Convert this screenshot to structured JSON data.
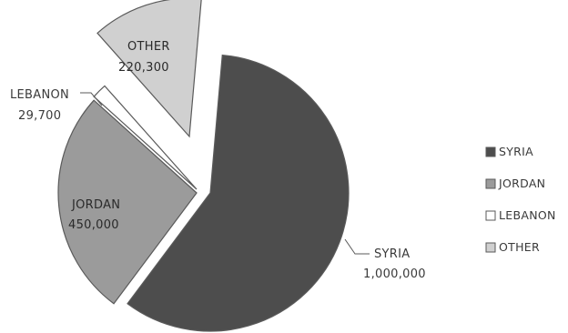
{
  "chart_data": {
    "type": "pie",
    "exploded": true,
    "categories": [
      "SYRIA",
      "JORDAN",
      "LEBANON",
      "OTHER"
    ],
    "values": [
      1000000,
      450000,
      29700,
      220300
    ],
    "value_labels": [
      "1,000,000",
      "450,000",
      "29,700",
      "220,300"
    ],
    "colors": [
      "#4d4d4d",
      "#9b9b9b",
      "#ffffff",
      "#d0d0d0"
    ],
    "stroke": "#5a5a5a",
    "legend": {
      "placement": "right",
      "items": [
        "SYRIA",
        "JORDAN",
        "LEBANON",
        "OTHER"
      ]
    }
  }
}
